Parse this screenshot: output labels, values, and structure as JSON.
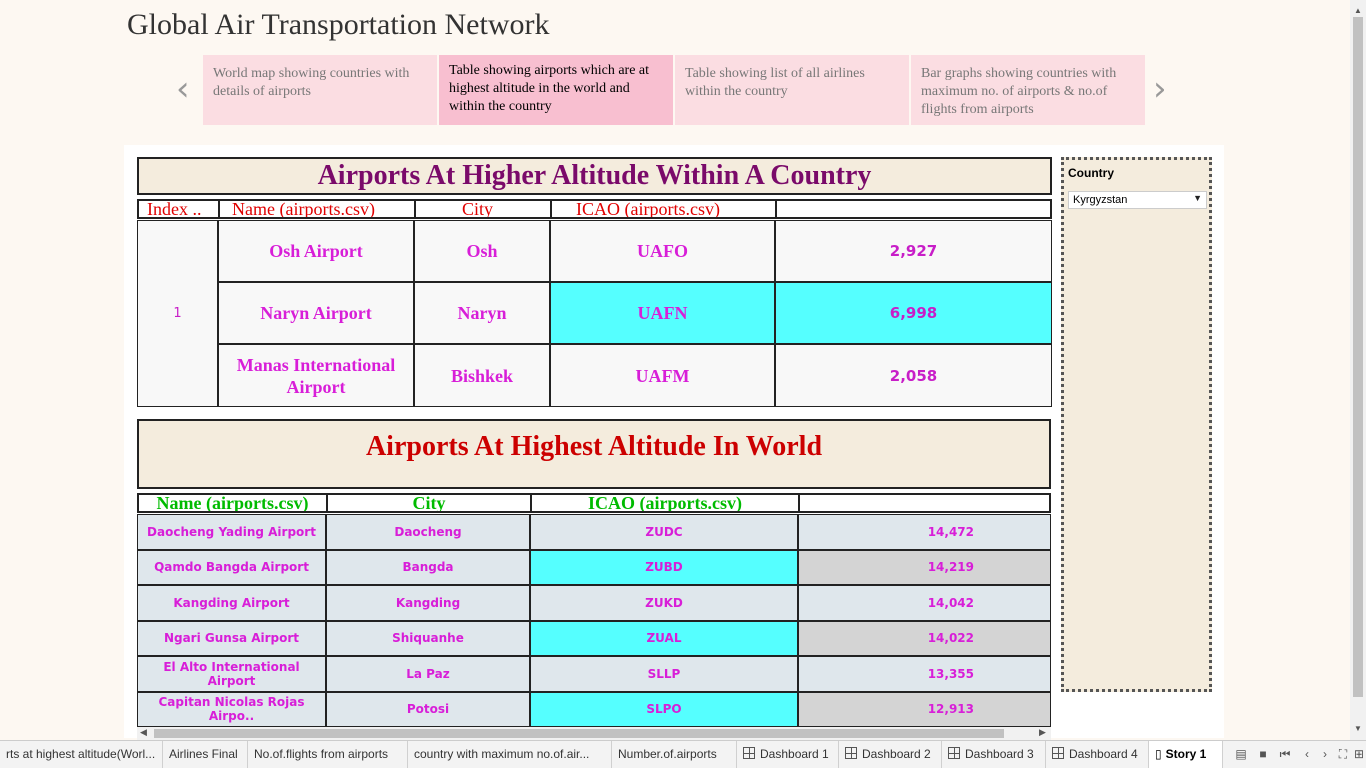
{
  "title": "Global Air Transportation Network",
  "story_points": [
    "World map showing countries with details of airports",
    "Table showing airports which are at highest altitude in the world and within the country",
    "Table showing list of all airlines within the country",
    "Bar graphs showing countries with maximum no. of airports & no.of flights from airports"
  ],
  "nav": {
    "prev": "‹",
    "next": "›"
  },
  "country_table": {
    "title": "Airports At Higher Altitude Within A Country",
    "headers": [
      "Index ..",
      "Name (airports.csv)",
      "City",
      "ICAO (airports.csv)",
      ""
    ],
    "index": "1",
    "rows": [
      {
        "name": "Osh Airport",
        "city": "Osh",
        "icao": "UAFO",
        "altitude": "2,927",
        "highlight": false
      },
      {
        "name": "Naryn Airport",
        "city": "Naryn",
        "icao": "UAFN",
        "altitude": "6,998",
        "highlight": true
      },
      {
        "name": "Manas International Airport",
        "city": "Bishkek",
        "icao": "UAFM",
        "altitude": "2,058",
        "highlight": false
      }
    ]
  },
  "world_table": {
    "title": "Airports At Highest Altitude In World",
    "headers": [
      "Name (airports.csv)",
      "City",
      "ICAO (airports.csv)",
      ""
    ],
    "rows": [
      {
        "name": "Daocheng Yading Airport",
        "city": "Daocheng",
        "icao": "ZUDC",
        "altitude": "14,472"
      },
      {
        "name": "Qamdo Bangda Airport",
        "city": "Bangda",
        "icao": "ZUBD",
        "altitude": "14,219"
      },
      {
        "name": "Kangding Airport",
        "city": "Kangding",
        "icao": "ZUKD",
        "altitude": "14,042"
      },
      {
        "name": "Ngari Gunsa Airport",
        "city": "Shiquanhe",
        "icao": "ZUAL",
        "altitude": "14,022"
      },
      {
        "name": "El Alto International Airport",
        "city": "La Paz",
        "icao": "SLLP",
        "altitude": "13,355"
      },
      {
        "name": "Capitan Nicolas Rojas Airpo..",
        "city": "Potosi",
        "icao": "SLPO",
        "altitude": "12,913"
      }
    ]
  },
  "filter": {
    "title": "Country",
    "value": "Kyrgyzstan"
  },
  "tabs": [
    "rts at highest altitude(Worl...",
    "Airlines Final",
    "No.of.flights from airports",
    "country with maximum no.of.air...",
    "Number.of.airports",
    "Dashboard 1",
    "Dashboard 2",
    "Dashboard 3",
    "Dashboard 4",
    "Story 1"
  ],
  "colors": {
    "title_country": "#7a0a6a",
    "title_world": "#cc0000",
    "header_red": "#e00000",
    "header_green": "#00bb00",
    "value_magenta": "#d81ed8",
    "highlight_cyan": "#55ffff"
  }
}
